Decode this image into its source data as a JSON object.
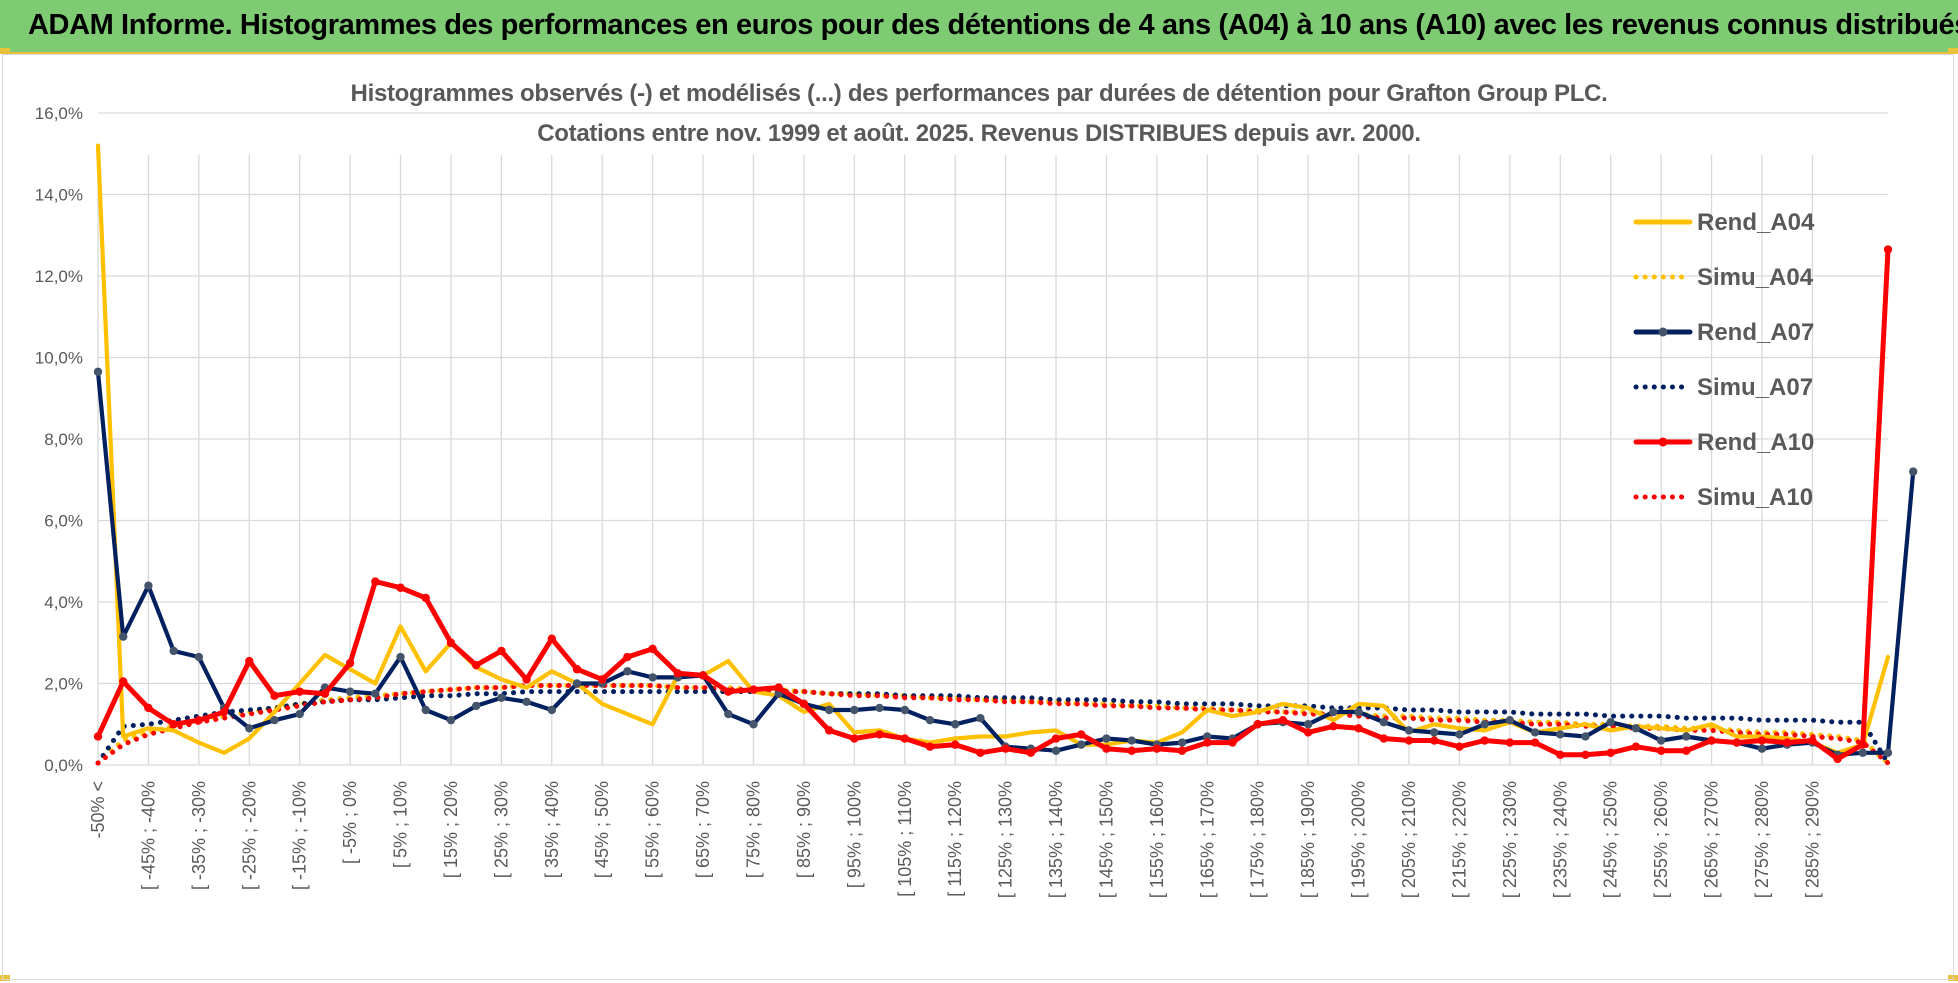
{
  "banner": {
    "title": "ADAM Informe. Histogrammes des performances en euros pour des détentions de 4 ans (A04) à 10 ans (A10) avec les revenus connus distribués"
  },
  "colors": {
    "banner": "#7ecb74",
    "accent": "#e8c23a",
    "a04": "#ffc000",
    "a07": "#002060",
    "a10": "#ff0000",
    "grid": "#d9d9d9"
  },
  "chart_data": {
    "type": "line",
    "title": "Histogrammes observés (-) et modélisés (...) des performances par durées de détention pour Grafton Group PLC.",
    "subtitle": "Cotations entre nov. 1999 et août. 2025. Revenus DISTRIBUES depuis avr. 2000.",
    "ylim": [
      0,
      16
    ],
    "y_ticks": [
      "0,0%",
      "2,0%",
      "4,0%",
      "6,0%",
      "8,0%",
      "10,0%",
      "12,0%",
      "14,0%",
      "16,0%"
    ],
    "x_labels": [
      "-50% <",
      "[ -45% ; -40%",
      "[ -35% ; -30%",
      "[ -25% ; -20%",
      "[ -15% ; -10%",
      "[ -5% ; 0%",
      "[ 5% ; 10%",
      "[ 15% ; 20%",
      "[ 25% ; 30%",
      "[ 35% ; 40%",
      "[ 45% ; 50%",
      "[ 55% ; 60%",
      "[ 65% ; 70%",
      "[ 75% ; 80%",
      "[ 85% ; 90%",
      "[ 95% ; 100%",
      "[ 105% ; 110%",
      "[ 115% ; 120%",
      "[ 125% ; 130%",
      "[ 135% ; 140%",
      "[ 145% ; 150%",
      "[ 155% ; 160%",
      "[ 165% ; 170%",
      "[ 175% ; 180%",
      "[ 185% ; 190%",
      "[ 195% ; 200%",
      "[ 205% ; 210%",
      "[ 215% ; 220%",
      "[ 225% ; 230%",
      "[ 235% ; 240%",
      "[ 245% ; 250%",
      "[ 255% ; 260%",
      "[ 265% ; 270%",
      "[ 275% ; 280%",
      "[ 285% ; 290%"
    ],
    "legend_position": "right",
    "series": [
      {
        "name": "Rend_A04",
        "style": "solid",
        "markers": false,
        "color": "#ffc000",
        "values": [
          15.2,
          0.7,
          0.9,
          0.85,
          0.55,
          0.3,
          0.65,
          1.3,
          2.0,
          2.7,
          2.35,
          2.0,
          3.4,
          2.3,
          3.0,
          2.4,
          2.1,
          1.9,
          2.3,
          2.0,
          1.5,
          1.25,
          1.0,
          2.2,
          2.2,
          2.55,
          1.8,
          1.7,
          1.3,
          1.5,
          0.8,
          0.85,
          0.65,
          0.55,
          0.65,
          0.7,
          0.7,
          0.8,
          0.85,
          0.5,
          0.5,
          0.6,
          0.55,
          0.8,
          1.35,
          1.2,
          1.3,
          1.5,
          1.4,
          1.1,
          1.5,
          1.45,
          0.8,
          1.0,
          0.9,
          0.85,
          1.05,
          0.8,
          0.9,
          1.0,
          0.85,
          0.95,
          0.9,
          0.85,
          1.0,
          0.7,
          0.7,
          0.65,
          0.55,
          0.3,
          0.5,
          2.65
        ]
      },
      {
        "name": "Simu_A04",
        "style": "dotted",
        "markers": false,
        "color": "#ffc000",
        "values": [
          0.05,
          0.6,
          0.8,
          0.95,
          1.1,
          1.2,
          1.3,
          1.4,
          1.5,
          1.6,
          1.65,
          1.7,
          1.75,
          1.8,
          1.85,
          1.9,
          1.9,
          1.95,
          1.95,
          1.95,
          1.95,
          1.95,
          1.95,
          1.9,
          1.9,
          1.9,
          1.85,
          1.85,
          1.8,
          1.75,
          1.75,
          1.7,
          1.7,
          1.65,
          1.65,
          1.6,
          1.6,
          1.55,
          1.55,
          1.5,
          1.5,
          1.45,
          1.45,
          1.4,
          1.4,
          1.35,
          1.35,
          1.3,
          1.3,
          1.25,
          1.25,
          1.2,
          1.2,
          1.15,
          1.15,
          1.1,
          1.1,
          1.05,
          1.05,
          1.0,
          1.0,
          0.95,
          0.95,
          0.9,
          0.9,
          0.85,
          0.8,
          0.8,
          0.75,
          0.7,
          0.6,
          0.05
        ]
      },
      {
        "name": "Rend_A07",
        "style": "solid",
        "markers": true,
        "color": "#002060",
        "values": [
          9.65,
          3.15,
          4.4,
          2.8,
          2.65,
          1.4,
          0.9,
          1.1,
          1.25,
          1.9,
          1.8,
          1.75,
          2.65,
          1.35,
          1.1,
          1.45,
          1.65,
          1.55,
          1.35,
          2.0,
          2.0,
          2.3,
          2.15,
          2.15,
          2.2,
          1.25,
          1.0,
          1.75,
          1.5,
          1.35,
          1.35,
          1.4,
          1.35,
          1.1,
          1.0,
          1.15,
          0.45,
          0.4,
          0.35,
          0.5,
          0.65,
          0.6,
          0.5,
          0.55,
          0.7,
          0.65,
          1.0,
          1.05,
          1.0,
          1.3,
          1.3,
          1.05,
          0.85,
          0.8,
          0.75,
          1.0,
          1.1,
          0.8,
          0.75,
          0.7,
          1.05,
          0.9,
          0.6,
          0.7,
          0.6,
          0.55,
          0.4,
          0.5,
          0.55,
          0.25,
          0.3,
          0.3,
          7.2
        ]
      },
      {
        "name": "Simu_A07",
        "style": "dotted",
        "markers": false,
        "color": "#002060",
        "values": [
          0.05,
          0.95,
          1.0,
          1.1,
          1.2,
          1.3,
          1.35,
          1.4,
          1.5,
          1.55,
          1.6,
          1.6,
          1.65,
          1.7,
          1.7,
          1.75,
          1.75,
          1.8,
          1.8,
          1.8,
          1.8,
          1.8,
          1.8,
          1.8,
          1.8,
          1.8,
          1.8,
          1.8,
          1.8,
          1.75,
          1.75,
          1.75,
          1.7,
          1.7,
          1.7,
          1.65,
          1.65,
          1.65,
          1.6,
          1.6,
          1.6,
          1.55,
          1.55,
          1.5,
          1.5,
          1.5,
          1.45,
          1.45,
          1.45,
          1.4,
          1.4,
          1.4,
          1.35,
          1.35,
          1.3,
          1.3,
          1.3,
          1.25,
          1.25,
          1.25,
          1.2,
          1.2,
          1.2,
          1.15,
          1.15,
          1.15,
          1.1,
          1.1,
          1.1,
          1.05,
          1.05,
          0.05
        ]
      },
      {
        "name": "Rend_A10",
        "style": "solid",
        "markers": true,
        "color": "#ff0000",
        "values": [
          0.7,
          2.05,
          1.4,
          1.0,
          1.1,
          1.3,
          2.55,
          1.7,
          1.8,
          1.75,
          2.5,
          4.5,
          4.35,
          4.1,
          3.0,
          2.45,
          2.8,
          2.1,
          3.1,
          2.35,
          2.1,
          2.65,
          2.85,
          2.25,
          2.2,
          1.8,
          1.85,
          1.9,
          1.5,
          0.85,
          0.65,
          0.75,
          0.65,
          0.45,
          0.5,
          0.3,
          0.4,
          0.3,
          0.65,
          0.75,
          0.4,
          0.35,
          0.4,
          0.35,
          0.55,
          0.55,
          1.0,
          1.1,
          0.8,
          0.95,
          0.9,
          0.65,
          0.6,
          0.6,
          0.45,
          0.6,
          0.55,
          0.55,
          0.25,
          0.25,
          0.3,
          0.45,
          0.35,
          0.35,
          0.6,
          0.55,
          0.6,
          0.55,
          0.6,
          0.15,
          0.5,
          12.65
        ]
      },
      {
        "name": "Simu_A10",
        "style": "dotted",
        "markers": false,
        "color": "#ff0000",
        "values": [
          0.05,
          0.5,
          0.75,
          0.9,
          1.05,
          1.15,
          1.25,
          1.35,
          1.45,
          1.55,
          1.6,
          1.65,
          1.75,
          1.8,
          1.85,
          1.9,
          1.9,
          1.95,
          1.95,
          1.95,
          1.95,
          1.95,
          1.95,
          1.9,
          1.9,
          1.85,
          1.85,
          1.8,
          1.8,
          1.75,
          1.7,
          1.7,
          1.65,
          1.65,
          1.6,
          1.6,
          1.55,
          1.55,
          1.5,
          1.5,
          1.45,
          1.45,
          1.4,
          1.4,
          1.35,
          1.35,
          1.3,
          1.3,
          1.25,
          1.25,
          1.2,
          1.15,
          1.15,
          1.1,
          1.1,
          1.05,
          1.05,
          1.0,
          1.0,
          0.95,
          0.95,
          0.9,
          0.9,
          0.85,
          0.85,
          0.8,
          0.75,
          0.75,
          0.7,
          0.65,
          0.55,
          0.05
        ]
      }
    ]
  }
}
